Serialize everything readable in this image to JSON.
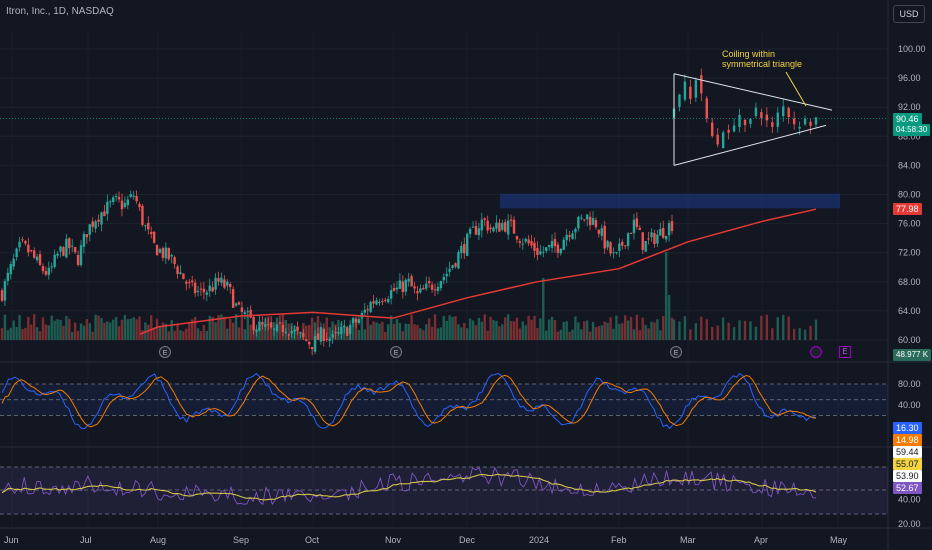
{
  "header": {
    "title": "Itron, Inc., 1D, NASDAQ"
  },
  "toolbar": {
    "currency": "USD"
  },
  "annotation": {
    "line1": "Coiling within",
    "line2": "symmetrical triangle"
  },
  "badges": {
    "earnings": "E",
    "dividend": "E"
  },
  "colors": {
    "background": "#131722",
    "up": "#26a69a",
    "down": "#ef5350",
    "ma": "#e53935",
    "stoch_k": "#2962ff",
    "stoch_d": "#f57c00",
    "rsi": "#7e57c2",
    "rsi_ma": "#d4c44a"
  },
  "chart_data": [
    {
      "type": "candlestick",
      "pane": "price",
      "title": "Itron, Inc., 1D, NASDAQ",
      "ylim": [
        58,
        104
      ],
      "y_ticks": [
        "100.00",
        "96.00",
        "92.00",
        "88.00",
        "84.00",
        "80.00",
        "76.00",
        "72.00",
        "68.00",
        "64.00",
        "60.00"
      ],
      "x_ticks": [
        "Jun",
        "Jul",
        "Aug",
        "Sep",
        "Oct",
        "Nov",
        "Dec",
        "2024",
        "Feb",
        "Mar",
        "Apr",
        "May"
      ],
      "last_price": "90.46",
      "countdown": "04:58:30",
      "ma_last": "77.98",
      "volume_last": "48.977 K",
      "close_series": [
        66.5,
        70,
        73,
        72,
        70,
        69,
        72,
        73,
        71,
        75,
        77,
        78,
        79,
        78.5,
        80,
        76,
        73,
        72,
        71,
        69,
        67,
        66.5,
        67,
        68,
        67,
        64,
        63,
        62,
        61.5,
        61,
        62,
        61,
        60,
        59.5,
        61,
        60,
        61,
        62,
        63,
        65,
        66,
        66.5,
        67,
        68,
        66,
        67,
        68,
        69,
        71,
        73,
        75,
        76.5,
        75,
        76,
        75.5,
        74,
        73,
        72,
        72.5,
        73,
        75,
        76,
        77,
        76,
        73,
        71,
        74,
        76,
        73,
        74,
        75,
        76
      ],
      "ma200": [
        {
          "x": "Aug",
          "y": 61.8
        },
        {
          "x": "Sep",
          "y": 63.3
        },
        {
          "x": "Oct",
          "y": 63.8
        },
        {
          "x": "Nov",
          "y": 63.0
        },
        {
          "x": "Dec",
          "y": 65.8
        },
        {
          "x": "2024",
          "y": 68.0
        },
        {
          "x": "Feb",
          "y": 69.8
        },
        {
          "x": "Mar",
          "y": 73.5
        },
        {
          "x": "Apr",
          "y": 76.3
        },
        {
          "x": "Apr end",
          "y": 77.98
        }
      ],
      "resistance_zone": [
        78.1,
        80.1
      ],
      "triangle": {
        "upper": [
          [
            96.6,
            "Feb end"
          ],
          [
            91.6,
            "Apr end"
          ]
        ],
        "lower": [
          [
            84.0,
            "Feb end"
          ],
          [
            89.5,
            "Apr end"
          ]
        ]
      }
    },
    {
      "type": "line",
      "pane": "stochastic",
      "y_ticks": [
        "80.00",
        "40.00",
        "0.00"
      ],
      "series": [
        {
          "values_last": "16.30"
        },
        {
          "values_last": "14.98"
        }
      ]
    },
    {
      "type": "line",
      "pane": "rsi",
      "y_ticks": [
        "60.00",
        "40.00",
        "20.00"
      ],
      "levels": [
        "59.44",
        "55.07",
        "53.90",
        "52.67"
      ]
    }
  ]
}
